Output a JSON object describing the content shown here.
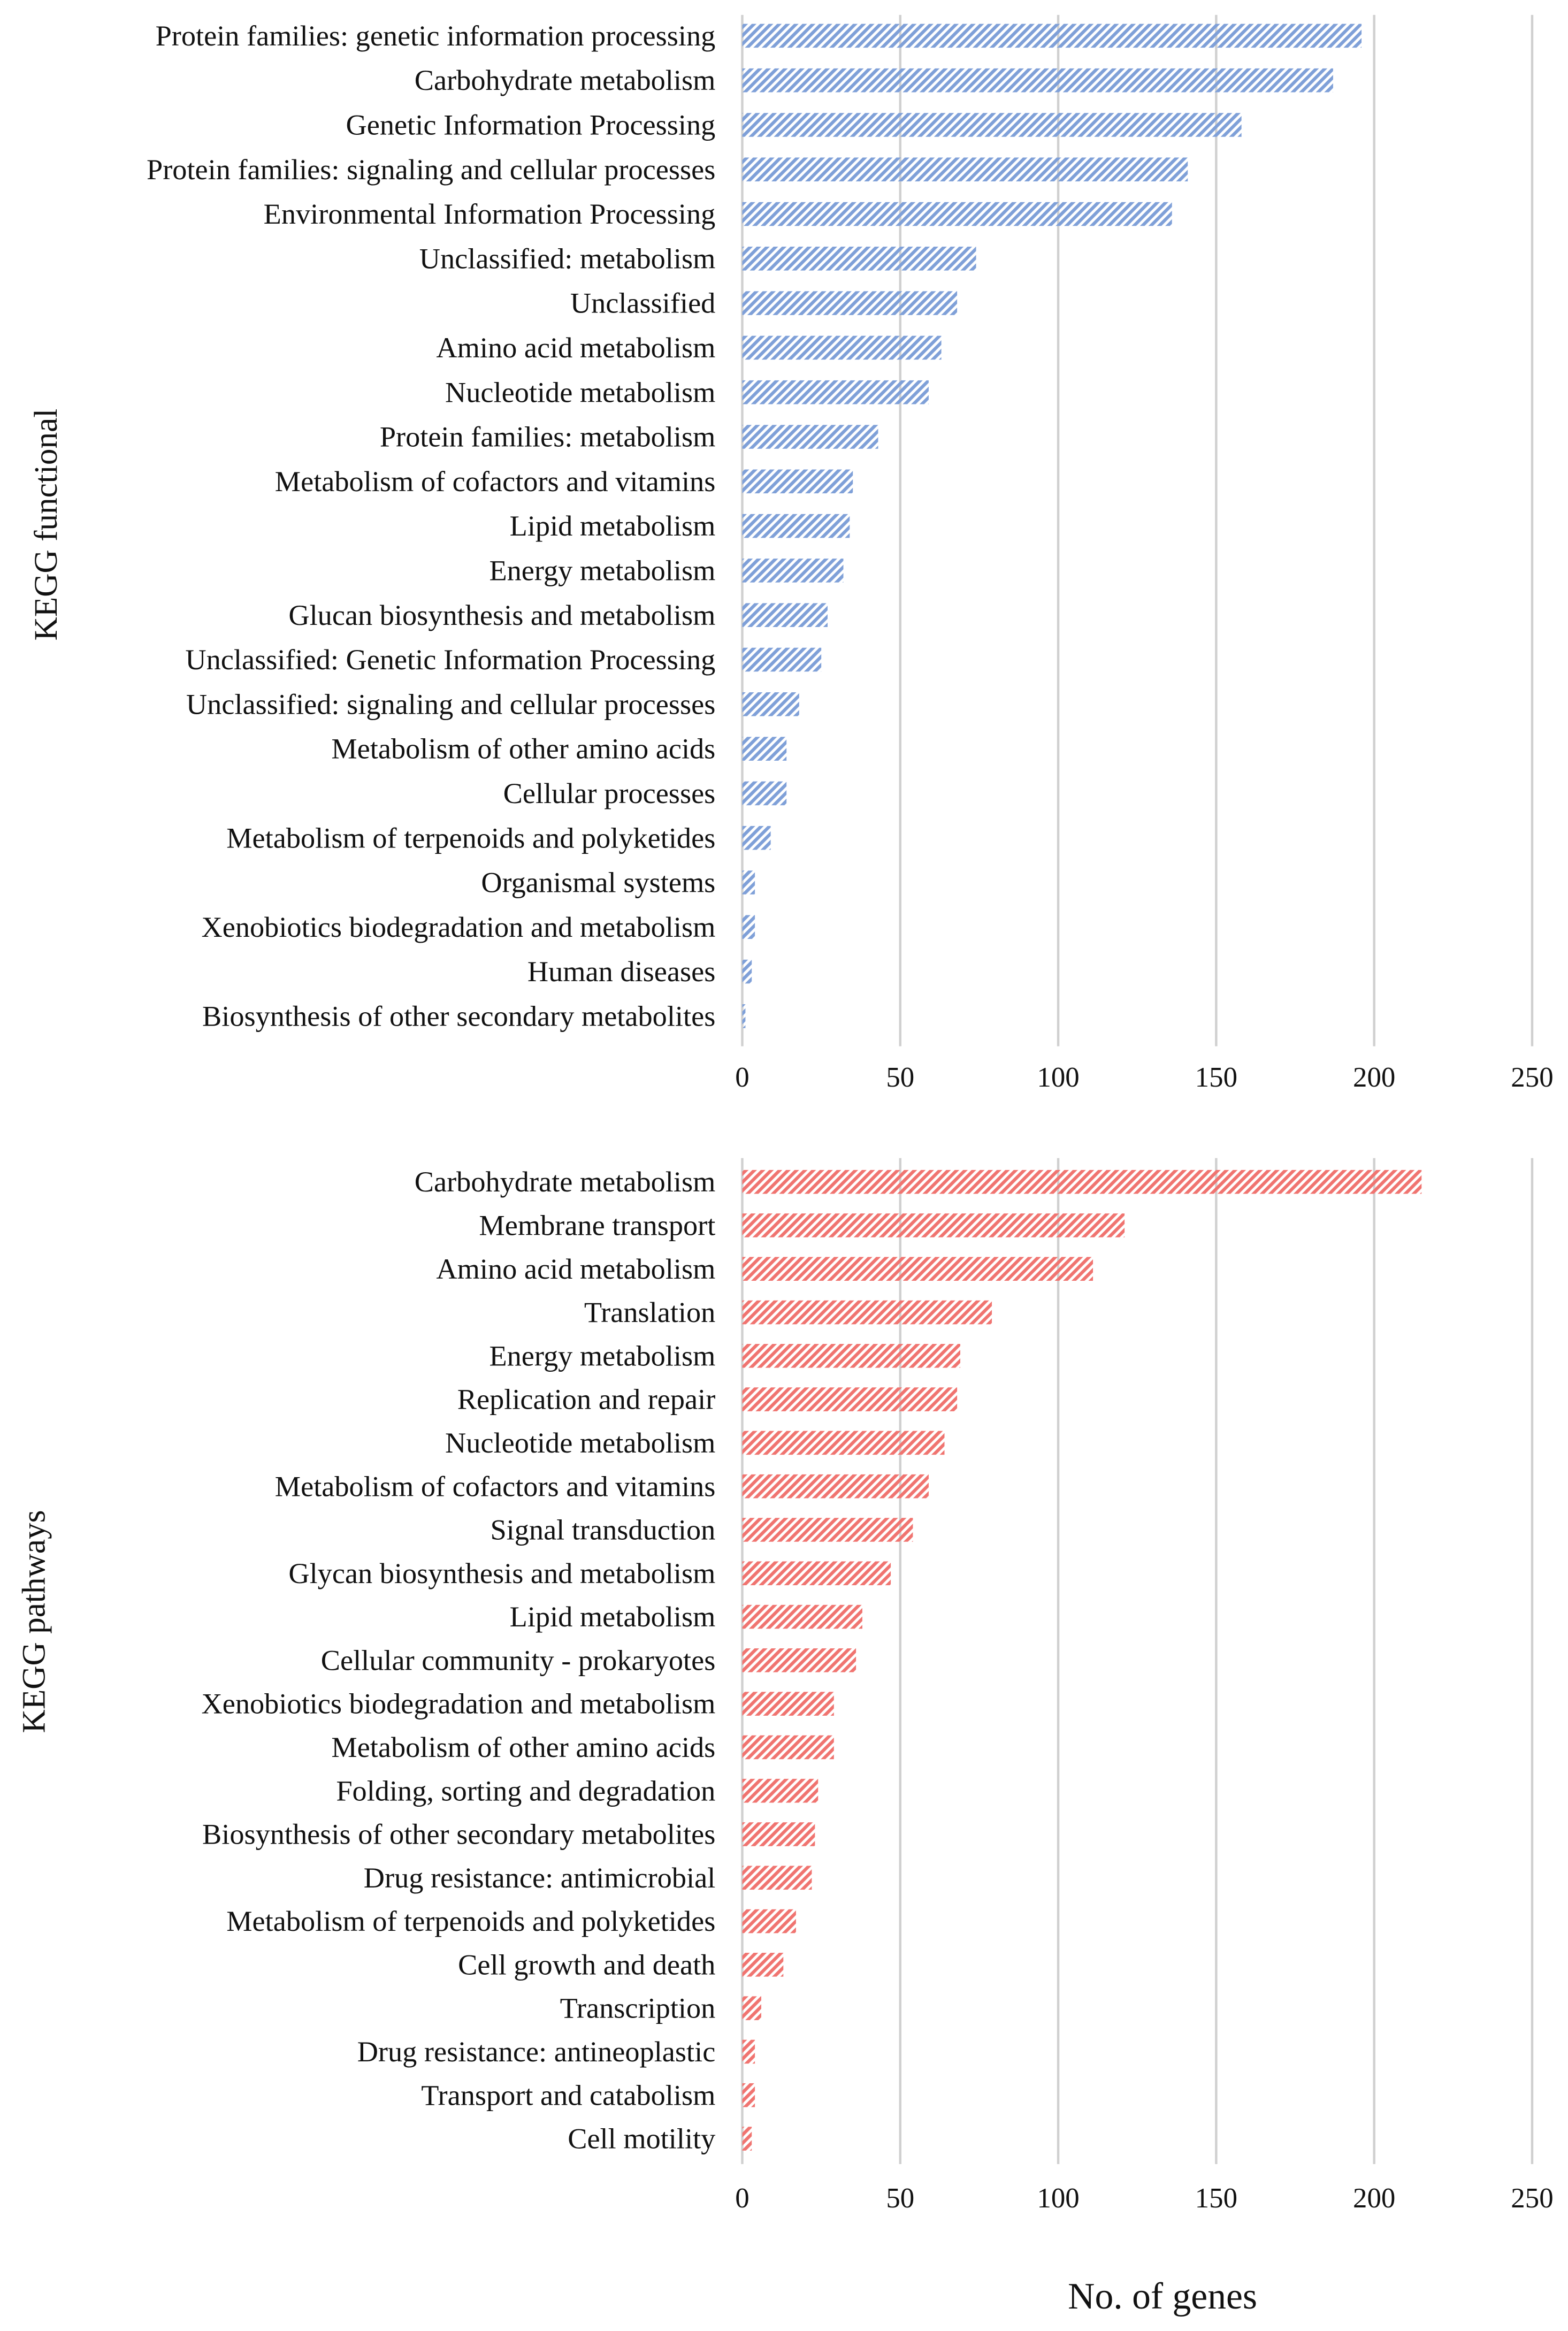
{
  "chart_data": [
    {
      "type": "bar",
      "orientation": "horizontal",
      "ylabel": "KEGG functional",
      "xlabel": "",
      "xlim": [
        0,
        250
      ],
      "xticks": [
        "0",
        "50",
        "100",
        "150",
        "200",
        "250"
      ],
      "grid": true,
      "color": "#7FA0D8",
      "pattern": "diagonal-hatch",
      "categories": [
        "Protein families: genetic information processing",
        "Carbohydrate metabolism",
        "Genetic Information Processing",
        "Protein families: signaling and cellular processes",
        "Environmental Information Processing",
        "Unclassified: metabolism",
        "Unclassified",
        "Amino acid metabolism",
        "Nucleotide metabolism",
        "Protein families: metabolism",
        "Metabolism of cofactors and vitamins",
        "Lipid metabolism",
        "Energy metabolism",
        "Glucan biosynthesis and metabolism",
        "Unclassified: Genetic Information Processing",
        "Unclassified: signaling and cellular processes",
        "Metabolism of other amino acids",
        "Cellular processes",
        "Metabolism of terpenoids and polyketides",
        "Organismal systems",
        "Xenobiotics biodegradation and metabolism",
        "Human diseases",
        "Biosynthesis of other secondary metabolites"
      ],
      "values": [
        196,
        187,
        158,
        141,
        136,
        74,
        68,
        63,
        59,
        43,
        35,
        34,
        32,
        27,
        25,
        18,
        14,
        14,
        9,
        4,
        4,
        3,
        1
      ]
    },
    {
      "type": "bar",
      "orientation": "horizontal",
      "ylabel": "KEGG pathways",
      "xlabel": "No. of genes",
      "xlim": [
        0,
        250
      ],
      "xticks": [
        "0",
        "50",
        "100",
        "150",
        "200",
        "250"
      ],
      "grid": true,
      "color": "#F07470",
      "pattern": "diagonal-hatch",
      "categories": [
        "Carbohydrate metabolism",
        "Membrane transport",
        "Amino acid metabolism",
        "Translation",
        "Energy metabolism",
        "Replication and repair",
        "Nucleotide metabolism",
        "Metabolism of cofactors and vitamins",
        "Signal transduction",
        "Glycan biosynthesis and metabolism",
        "Lipid metabolism",
        "Cellular community - prokaryotes",
        "Xenobiotics biodegradation and metabolism",
        "Metabolism of other amino acids",
        "Folding, sorting and degradation",
        "Biosynthesis of other secondary metabolites",
        "Drug resistance: antimicrobial",
        "Metabolism of terpenoids and polyketides",
        "Cell growth and death",
        "Transcription",
        "Drug resistance: antineoplastic",
        "Transport and catabolism",
        "Cell motility"
      ],
      "values": [
        215,
        121,
        111,
        79,
        69,
        68,
        64,
        59,
        54,
        47,
        38,
        36,
        29,
        29,
        24,
        23,
        22,
        17,
        13,
        6,
        4,
        4,
        3
      ]
    }
  ]
}
